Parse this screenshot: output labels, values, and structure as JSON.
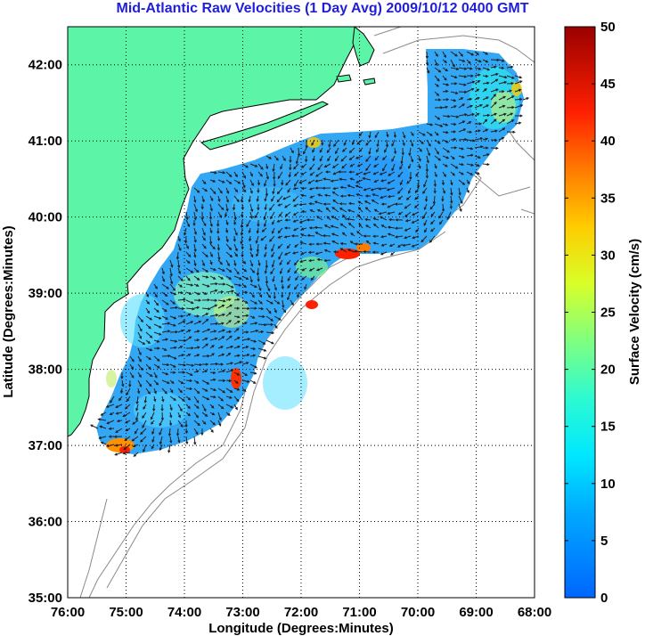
{
  "title": "Mid-Atlantic Raw Velocities (1 Day Avg) 2009/10/12 0400 GMT",
  "map": {
    "xlabel": "Longitude (Degrees:Minutes)",
    "ylabel": "Latitude (Degrees:Minutes)",
    "x_ticks": [
      "76:00",
      "75:00",
      "74:00",
      "73:00",
      "72:00",
      "71:00",
      "70:00",
      "69:00",
      "68:00"
    ],
    "y_ticks": [
      "42:00",
      "41:00",
      "40:00",
      "39:00",
      "38:00",
      "37:00",
      "36:00",
      "35:00"
    ],
    "lon_range": [
      -76,
      -68
    ],
    "lat_range": [
      35,
      42.5
    ],
    "grid": "dotted",
    "land_color": "#5cf5a8",
    "coast_color": "#000000",
    "bathymetry_color": "#8a8a8a"
  },
  "colorbar": {
    "label": "Surface Velocity (cm/s)",
    "ticks": [
      "50",
      "45",
      "40",
      "35",
      "30",
      "25",
      "20",
      "15",
      "10",
      "5",
      "0"
    ],
    "range": [
      0,
      50
    ],
    "colormap": "jet"
  }
}
